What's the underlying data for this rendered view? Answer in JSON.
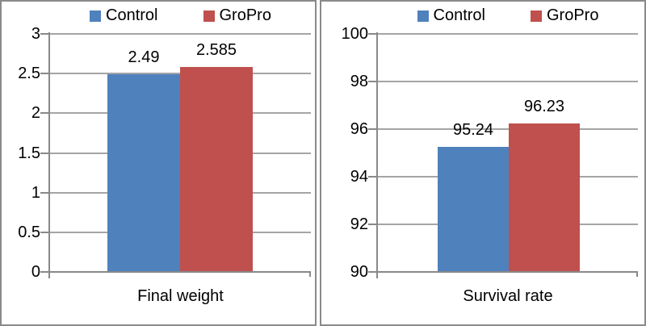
{
  "figure": {
    "background": "#FFFFFF",
    "panel_border_color": "#8A8A8A"
  },
  "colors": {
    "series_control": "#4F81BD",
    "series_gropro": "#C0504D",
    "gridline": "#A5A5A5",
    "axis": "#898989",
    "text": "#000000"
  },
  "chart_data": [
    {
      "type": "bar",
      "title": "",
      "xlabel": "Final weight",
      "ylabel": "",
      "categories": [
        "Final weight"
      ],
      "series": [
        {
          "name": "Control",
          "values": [
            2.49
          ],
          "data_label": "2.49",
          "color": "#4F81BD"
        },
        {
          "name": "GroPro",
          "values": [
            2.585
          ],
          "data_label": "2.585",
          "color": "#C0504D"
        }
      ],
      "ylim": [
        0,
        3
      ],
      "y_tick_labels": [
        "3",
        "2.5",
        "2",
        "1.5",
        "1",
        "0.5",
        "0"
      ],
      "grid": true,
      "legend_position": "top"
    },
    {
      "type": "bar",
      "title": "",
      "xlabel": "Survival rate",
      "ylabel": "",
      "categories": [
        "Survival rate"
      ],
      "series": [
        {
          "name": "Control",
          "values": [
            95.24
          ],
          "data_label": "95.24",
          "color": "#4F81BD"
        },
        {
          "name": "GroPro",
          "values": [
            96.23
          ],
          "data_label": "96.23",
          "color": "#C0504D"
        }
      ],
      "ylim": [
        90,
        100
      ],
      "y_tick_labels": [
        "100",
        "98",
        "96",
        "94",
        "92",
        "90"
      ],
      "grid": true,
      "legend_position": "top"
    }
  ]
}
